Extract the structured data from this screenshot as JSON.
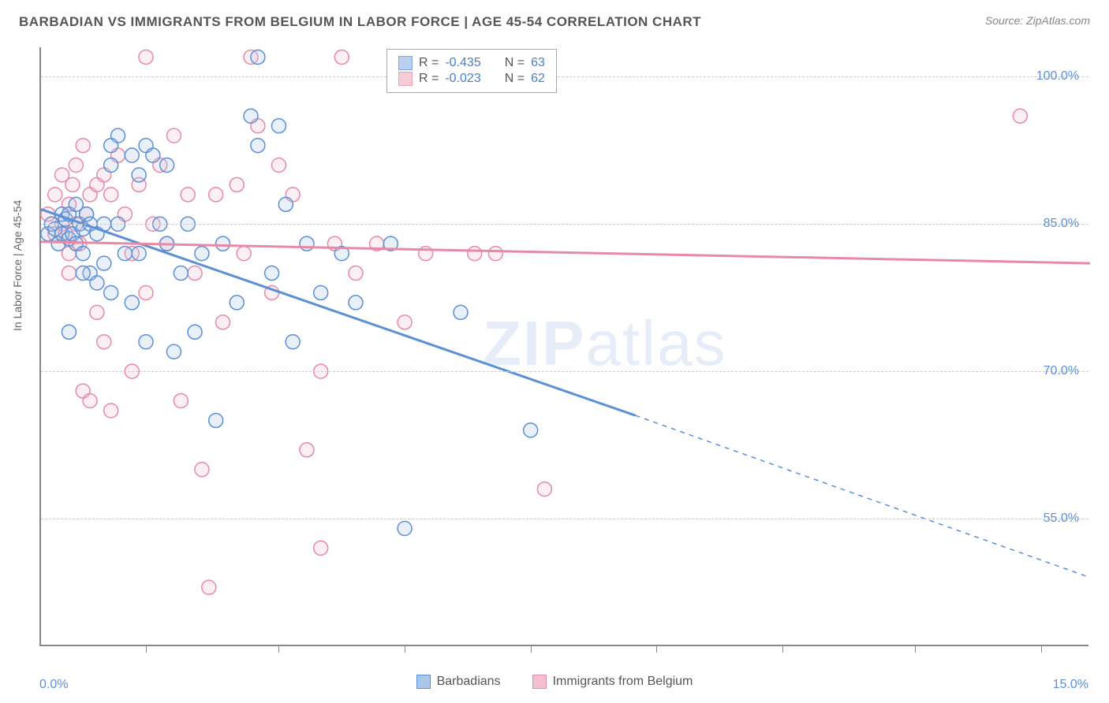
{
  "title": "BARBADIAN VS IMMIGRANTS FROM BELGIUM IN LABOR FORCE | AGE 45-54 CORRELATION CHART",
  "source": "Source: ZipAtlas.com",
  "ylabel": "In Labor Force | Age 45-54",
  "watermark": {
    "bold": "ZIP",
    "light": "atlas"
  },
  "chart": {
    "type": "scatter",
    "background_color": "#ffffff",
    "grid_color": "#cccccc",
    "axis_color": "#888888",
    "xlim": [
      0,
      15
    ],
    "ylim": [
      42,
      103
    ],
    "xtick_labels": [
      {
        "value": 0,
        "label": "0.0%"
      },
      {
        "value": 15,
        "label": "15.0%"
      }
    ],
    "xticks_minor": [
      1.5,
      3.4,
      5.2,
      7.0,
      8.8,
      10.6,
      12.5,
      14.3
    ],
    "ytick_labels": [
      {
        "value": 55,
        "label": "55.0%"
      },
      {
        "value": 70,
        "label": "70.0%"
      },
      {
        "value": 85,
        "label": "85.0%"
      },
      {
        "value": 100,
        "label": "100.0%"
      }
    ],
    "tick_label_color": "#5b8fd6",
    "tick_label_fontsize": 16,
    "marker_radius": 9,
    "marker_fill_opacity": 0.25,
    "marker_stroke_width": 1.5,
    "trend_line_width": 3,
    "trend_dash_pattern": "6,6",
    "series": [
      {
        "name": "Barbadians",
        "color_stroke": "#5b8fd6",
        "color_fill": "#a9c5e8",
        "R": "-0.435",
        "N": "63",
        "trend": {
          "x1": 0,
          "y1": 86.5,
          "x2_solid": 8.5,
          "y2_solid": 65.5,
          "x2_dash": 15,
          "y2_dash": 49
        },
        "points": [
          [
            0.1,
            84
          ],
          [
            0.15,
            85
          ],
          [
            0.2,
            84.5
          ],
          [
            0.25,
            83
          ],
          [
            0.3,
            86
          ],
          [
            0.3,
            84
          ],
          [
            0.35,
            85.5
          ],
          [
            0.4,
            83.5
          ],
          [
            0.4,
            86
          ],
          [
            0.45,
            84
          ],
          [
            0.5,
            87
          ],
          [
            0.5,
            83
          ],
          [
            0.55,
            85
          ],
          [
            0.6,
            84.5
          ],
          [
            0.6,
            82
          ],
          [
            0.65,
            86
          ],
          [
            0.7,
            80
          ],
          [
            0.7,
            85
          ],
          [
            0.8,
            84
          ],
          [
            0.8,
            79
          ],
          [
            0.9,
            85
          ],
          [
            0.9,
            81
          ],
          [
            1.0,
            78
          ],
          [
            1.0,
            91
          ],
          [
            1.1,
            85
          ],
          [
            1.1,
            94
          ],
          [
            1.2,
            82
          ],
          [
            1.3,
            92
          ],
          [
            1.3,
            77
          ],
          [
            1.4,
            90
          ],
          [
            1.5,
            93
          ],
          [
            1.5,
            73
          ],
          [
            1.6,
            92
          ],
          [
            1.7,
            85
          ],
          [
            1.8,
            91
          ],
          [
            1.8,
            83
          ],
          [
            1.9,
            72
          ],
          [
            2.0,
            80
          ],
          [
            2.1,
            85
          ],
          [
            2.2,
            74
          ],
          [
            2.3,
            82
          ],
          [
            2.5,
            65
          ],
          [
            2.6,
            83
          ],
          [
            2.8,
            77
          ],
          [
            3.0,
            96
          ],
          [
            3.1,
            102
          ],
          [
            3.1,
            93
          ],
          [
            3.3,
            80
          ],
          [
            3.4,
            95
          ],
          [
            3.5,
            87
          ],
          [
            3.6,
            73
          ],
          [
            3.8,
            83
          ],
          [
            4.0,
            78
          ],
          [
            4.3,
            82
          ],
          [
            4.5,
            77
          ],
          [
            5.0,
            83
          ],
          [
            5.2,
            54
          ],
          [
            6.0,
            76
          ],
          [
            7.0,
            64
          ],
          [
            0.4,
            74
          ],
          [
            1.0,
            93
          ],
          [
            0.6,
            80
          ],
          [
            1.4,
            82
          ]
        ]
      },
      {
        "name": "Immigrants from Belgium",
        "color_stroke": "#e68aa5",
        "color_fill": "#f3c0cf",
        "R": "-0.023",
        "N": "62",
        "trend": {
          "x1": 0,
          "y1": 83.2,
          "x2_solid": 15,
          "y2_solid": 81.0,
          "x2_dash": 15,
          "y2_dash": 81.0
        },
        "points": [
          [
            0.1,
            86
          ],
          [
            0.2,
            84
          ],
          [
            0.2,
            88
          ],
          [
            0.3,
            85
          ],
          [
            0.3,
            90
          ],
          [
            0.35,
            84
          ],
          [
            0.4,
            87
          ],
          [
            0.4,
            82
          ],
          [
            0.45,
            89
          ],
          [
            0.5,
            85
          ],
          [
            0.5,
            91
          ],
          [
            0.55,
            83
          ],
          [
            0.6,
            93
          ],
          [
            0.6,
            68
          ],
          [
            0.65,
            86
          ],
          [
            0.7,
            88
          ],
          [
            0.7,
            67
          ],
          [
            0.8,
            89
          ],
          [
            0.8,
            76
          ],
          [
            0.9,
            90
          ],
          [
            0.9,
            73
          ],
          [
            1.0,
            88
          ],
          [
            1.0,
            66
          ],
          [
            1.1,
            92
          ],
          [
            1.2,
            86
          ],
          [
            1.3,
            82
          ],
          [
            1.3,
            70
          ],
          [
            1.4,
            89
          ],
          [
            1.5,
            102
          ],
          [
            1.6,
            85
          ],
          [
            1.7,
            91
          ],
          [
            1.8,
            83
          ],
          [
            1.9,
            94
          ],
          [
            2.0,
            67
          ],
          [
            2.1,
            88
          ],
          [
            2.2,
            80
          ],
          [
            2.3,
            60
          ],
          [
            2.4,
            48
          ],
          [
            2.5,
            88
          ],
          [
            2.6,
            75
          ],
          [
            2.8,
            89
          ],
          [
            2.9,
            82
          ],
          [
            3.0,
            102
          ],
          [
            3.1,
            95
          ],
          [
            3.3,
            78
          ],
          [
            3.4,
            91
          ],
          [
            3.6,
            88
          ],
          [
            3.8,
            62
          ],
          [
            4.0,
            70
          ],
          [
            4.0,
            52
          ],
          [
            4.2,
            83
          ],
          [
            4.3,
            102
          ],
          [
            4.5,
            80
          ],
          [
            4.8,
            83
          ],
          [
            5.2,
            75
          ],
          [
            5.5,
            82
          ],
          [
            6.2,
            82
          ],
          [
            6.5,
            82
          ],
          [
            7.2,
            58
          ],
          [
            14.0,
            96
          ],
          [
            1.5,
            78
          ],
          [
            0.4,
            80
          ]
        ]
      }
    ]
  },
  "legend_stats_box": {
    "border_color": "#aaaaaa",
    "background": "#ffffff",
    "R_label": "R =",
    "N_label": "N ="
  },
  "bottom_legend": {
    "items": [
      "Barbadians",
      "Immigrants from Belgium"
    ]
  }
}
